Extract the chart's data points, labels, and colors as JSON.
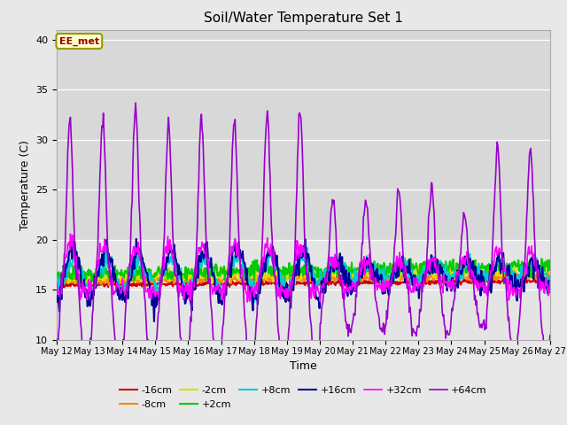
{
  "title": "Soil/Water Temperature Set 1",
  "xlabel": "Time",
  "ylabel": "Temperature (C)",
  "ylim": [
    10,
    41
  ],
  "yticks": [
    10,
    15,
    20,
    25,
    30,
    35,
    40
  ],
  "annotation_text": "EE_met",
  "annotation_bg": "#ffffcc",
  "annotation_border": "#999900",
  "bg_outer": "#e8e8e8",
  "bg_upper": "#dcdcdc",
  "bg_lower": "#e8e8e8",
  "series": [
    {
      "label": "-16cm",
      "color": "#cc0000",
      "lw": 1.5
    },
    {
      "label": "-8cm",
      "color": "#ff8800",
      "lw": 1.5
    },
    {
      "label": "-2cm",
      "color": "#dddd00",
      "lw": 1.5
    },
    {
      "label": "+2cm",
      "color": "#00cc00",
      "lw": 1.5
    },
    {
      "label": "+8cm",
      "color": "#00cccc",
      "lw": 1.5
    },
    {
      "label": "+16cm",
      "color": "#000099",
      "lw": 1.5
    },
    {
      "label": "+32cm",
      "color": "#ff00ff",
      "lw": 1.2
    },
    {
      "label": "+64cm",
      "color": "#9900cc",
      "lw": 1.2
    }
  ],
  "n_days": 15,
  "points_per_day": 48,
  "start_day": 12,
  "end_day": 27
}
